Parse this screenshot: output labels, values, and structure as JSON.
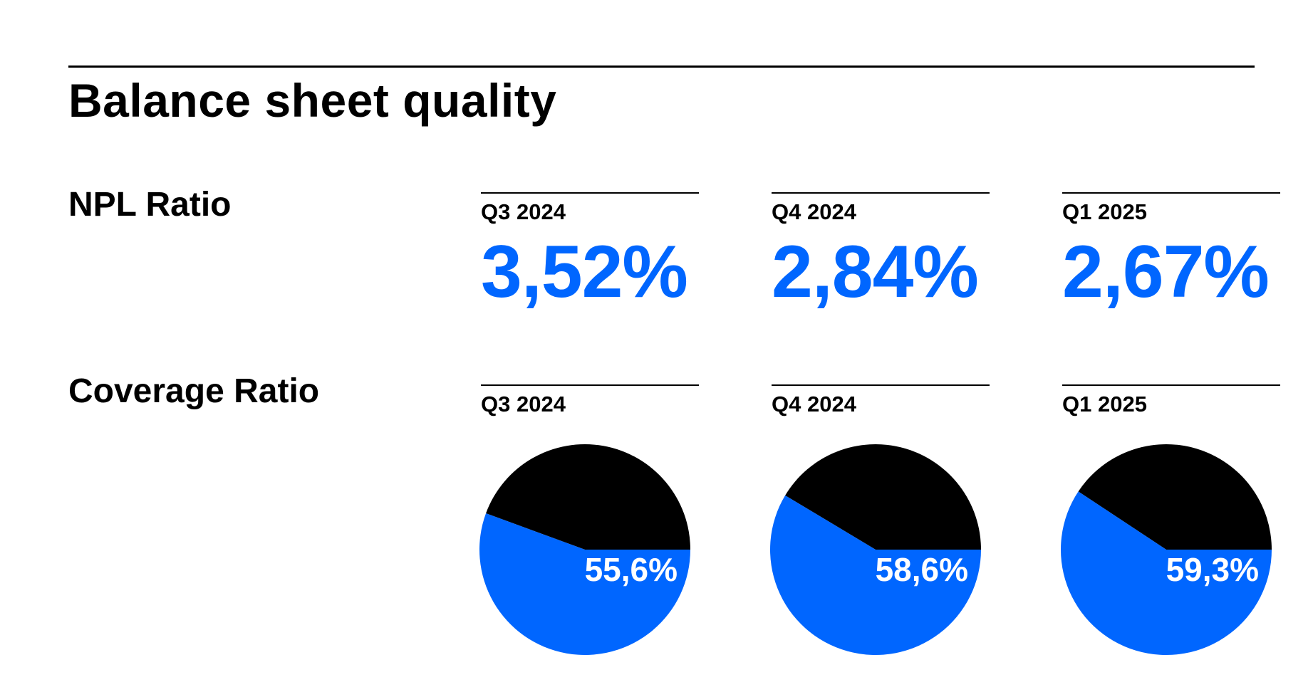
{
  "title": "Balance sheet quality",
  "colors": {
    "accent": "#0066FF",
    "ink": "#000000",
    "background": "#FFFFFF"
  },
  "npl": {
    "label": "NPL Ratio",
    "periods": [
      {
        "period": "Q3 2024",
        "value": "3,52%"
      },
      {
        "period": "Q4 2024",
        "value": "2,84%"
      },
      {
        "period": "Q1 2025",
        "value": "2,67%"
      }
    ]
  },
  "coverage": {
    "label": "Coverage Ratio",
    "periods": [
      {
        "period": "Q3 2024",
        "label": "55,6%"
      },
      {
        "period": "Q4 2024",
        "label": "58,6%"
      },
      {
        "period": "Q1 2025",
        "label": "59,3%"
      }
    ]
  },
  "chart_data": {
    "type": "pie",
    "categories": [
      "Q3 2024",
      "Q4 2024",
      "Q1 2025"
    ],
    "values": [
      55.6,
      58.6,
      59.3
    ],
    "unit": "%",
    "series_colors": {
      "coverage": "#0066FF",
      "remainder": "#000000"
    }
  }
}
